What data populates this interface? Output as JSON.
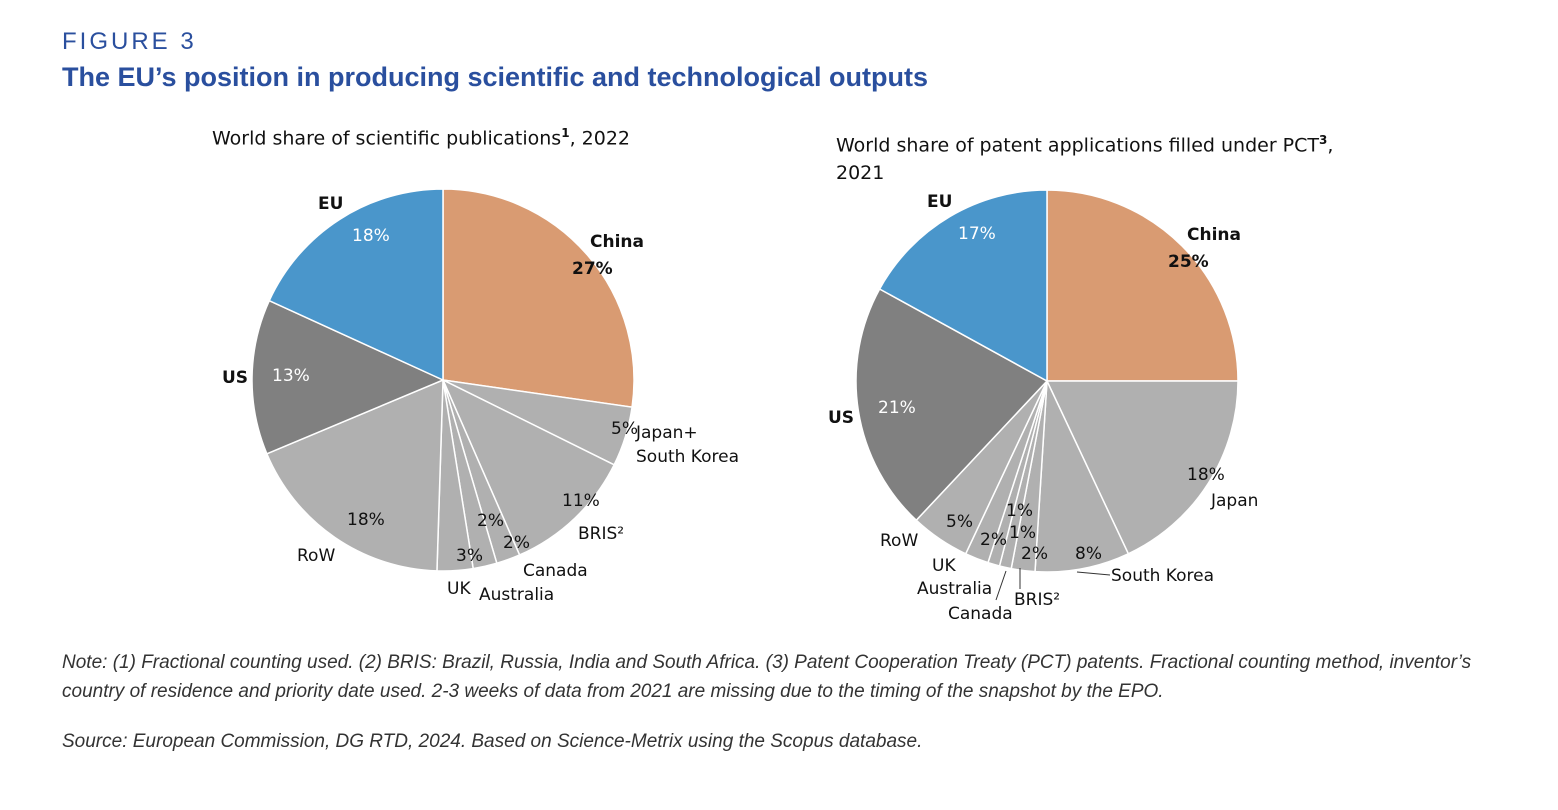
{
  "figure_label": "FIGURE 3",
  "figure_title": "The EU’s position in producing scientific and technological outputs",
  "colors": {
    "title_blue": "#2a4f9e",
    "eu": "#4a96cb",
    "china": "#d99b72",
    "us": "#808080",
    "other": "#b0b0b0"
  },
  "chart_data": [
    {
      "type": "pie",
      "title": "World share of scientific publications",
      "title_sup": "1",
      "title_suffix": ", 2022",
      "slices": [
        {
          "name": "China",
          "value": 27,
          "label": "27%",
          "color": "#d99b72"
        },
        {
          "name": "Japan+ South Korea",
          "value": 5,
          "label": "5%",
          "color": "#b0b0b0"
        },
        {
          "name": "BRIS²",
          "value": 11,
          "label": "11%",
          "color": "#b0b0b0"
        },
        {
          "name": "Canada",
          "value": 2,
          "label": "2%",
          "color": "#b0b0b0"
        },
        {
          "name": "Australia",
          "value": 2,
          "label": "2%",
          "color": "#b0b0b0"
        },
        {
          "name": "UK",
          "value": 3,
          "label": "3%",
          "color": "#b0b0b0"
        },
        {
          "name": "RoW",
          "value": 18,
          "label": "18%",
          "color": "#b0b0b0"
        },
        {
          "name": "US",
          "value": 13,
          "label": "13%",
          "color": "#808080"
        },
        {
          "name": "EU",
          "value": 18,
          "label": "18%",
          "color": "#4a96cb"
        }
      ]
    },
    {
      "type": "pie",
      "title": "World share of patent applications filled under PCT",
      "title_sup": "3",
      "title_suffix": ",",
      "title_line2": "2021",
      "slices": [
        {
          "name": "China",
          "value": 25,
          "label": "25%",
          "color": "#d99b72"
        },
        {
          "name": "Japan",
          "value": 18,
          "label": "18%",
          "color": "#b0b0b0"
        },
        {
          "name": "South Korea",
          "value": 8,
          "label": "8%",
          "color": "#b0b0b0"
        },
        {
          "name": "BRIS²",
          "value": 2,
          "label": "2%",
          "color": "#b0b0b0"
        },
        {
          "name": "Canada",
          "value": 1,
          "label": "1%",
          "color": "#b0b0b0"
        },
        {
          "name": "Australia",
          "value": 1,
          "label": "1%",
          "color": "#b0b0b0"
        },
        {
          "name": "UK",
          "value": 2,
          "label": "2%",
          "color": "#b0b0b0"
        },
        {
          "name": "RoW",
          "value": 5,
          "label": "5%",
          "color": "#b0b0b0"
        },
        {
          "name": "US",
          "value": 21,
          "label": "21%",
          "color": "#808080"
        },
        {
          "name": "EU",
          "value": 17,
          "label": "17%",
          "color": "#4a96cb"
        }
      ]
    }
  ],
  "note": "Note: (1) Fractional counting used. (2) BRIS: Brazil, Russia, India and South Africa. (3) Patent Cooperation Treaty (PCT) patents. Fractional counting method, inventor’s country of residence and priority date used. 2-3 weeks of data from 2021 are missing due to the timing of the snapshot by the EPO.",
  "source": "Source: European Commission, DG RTD, 2024. Based on Science-Metrix using the Scopus database."
}
